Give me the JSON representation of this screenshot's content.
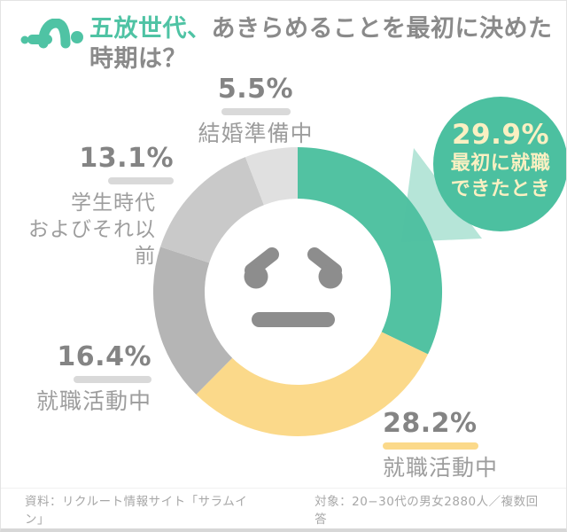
{
  "header": {
    "title_green": "五放世代、",
    "title_gray": "あきらめることを最初に決めた",
    "title_line2": "時期は？"
  },
  "chart_data": {
    "type": "pie",
    "donut": true,
    "title": "五放世代、あきらめることを最初に決めた時期は？",
    "start_angle_deg": 0,
    "direction": "clockwise",
    "segments": [
      {
        "label": "最初に就職できたとき",
        "value": 29.9,
        "color": "#52c2a2",
        "highlighted": true
      },
      {
        "label": "就職活動中",
        "value": 28.2,
        "color": "#fbd98a"
      },
      {
        "label": "就職活動中",
        "value": 16.4,
        "color": "#b5b5b5"
      },
      {
        "label": "学生時代およびそれ以前",
        "value": 13.1,
        "color": "#c9c9c9"
      },
      {
        "label": "結婚準備中",
        "value": 5.5,
        "color": "#e0e0e0"
      }
    ],
    "center_motif": "troubled-face"
  },
  "labels": {
    "top": {
      "pct": "5.5%",
      "name": "結婚準備中"
    },
    "left_upper": {
      "pct": "13.1%",
      "line1": "学生時代",
      "line2": "およびそれ以前"
    },
    "left_lower": {
      "pct": "16.4%",
      "name": "就職活動中"
    },
    "bottom_right": {
      "pct": "28.2%",
      "name": "就職活動中"
    },
    "bubble": {
      "pct": "29.9%",
      "line1": "最初に就職",
      "line2": "できたとき"
    }
  },
  "footer": {
    "source": "資料：リクルート情報サイト「サラムイン」",
    "target": "対象：20−30代の男女2880人／複数回答"
  },
  "colors": {
    "accent": "#4fc3a4",
    "bubble-green": "#4cc0a0",
    "yellow": "#fbd98a",
    "tail": "rgba(82,194,162,0.42)"
  }
}
